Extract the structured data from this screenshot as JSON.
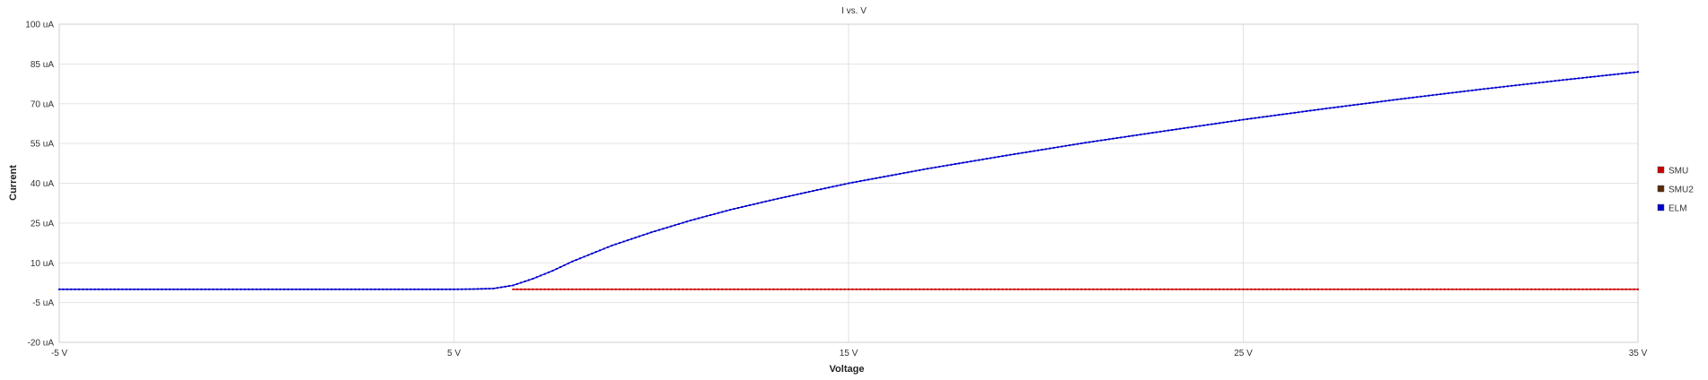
{
  "chart_data": {
    "type": "line",
    "title": "I vs. V",
    "xlabel": "Voltage",
    "ylabel": "Current",
    "x_unit": "V",
    "y_unit": "uA",
    "xlim": [
      -5,
      35
    ],
    "ylim": [
      -20,
      100
    ],
    "xticks": [
      -5,
      5,
      15,
      25,
      35
    ],
    "yticks": [
      -20,
      -5,
      10,
      25,
      40,
      55,
      70,
      85,
      100
    ],
    "xtick_labels": [
      "-5 V",
      "5 V",
      "15 V",
      "25 V",
      "35 V"
    ],
    "ytick_labels": [
      "-20 uA",
      "-5 uA",
      "10 uA",
      "25 uA",
      "40 uA",
      "55 uA",
      "70 uA",
      "85 uA",
      "100 uA"
    ],
    "grid": true,
    "legend_position": "right",
    "series": [
      {
        "name": "SMU",
        "color": "#cc0000",
        "x": [
          6.5,
          10,
          15,
          20,
          25,
          30,
          35
        ],
        "y": [
          0,
          0,
          0,
          0,
          0,
          0,
          0
        ]
      },
      {
        "name": "SMU2",
        "color": "#5a2a0a",
        "x": [],
        "y": []
      },
      {
        "name": "ELM",
        "color": "#0000cc",
        "x": [
          -5,
          0,
          5,
          5.5,
          6,
          6.5,
          7,
          7.5,
          8,
          8.5,
          9,
          10,
          11,
          12,
          13,
          14,
          15,
          17,
          19,
          21,
          23,
          25,
          27,
          29,
          31,
          33,
          35
        ],
        "y": [
          0,
          0,
          0,
          0.1,
          0.3,
          1.5,
          4,
          7,
          10.5,
          13.5,
          16.5,
          21.5,
          26,
          30,
          33.5,
          36.8,
          40,
          45.5,
          50.5,
          55.3,
          59.7,
          64,
          68,
          71.8,
          75.4,
          78.8,
          82
        ]
      }
    ]
  }
}
